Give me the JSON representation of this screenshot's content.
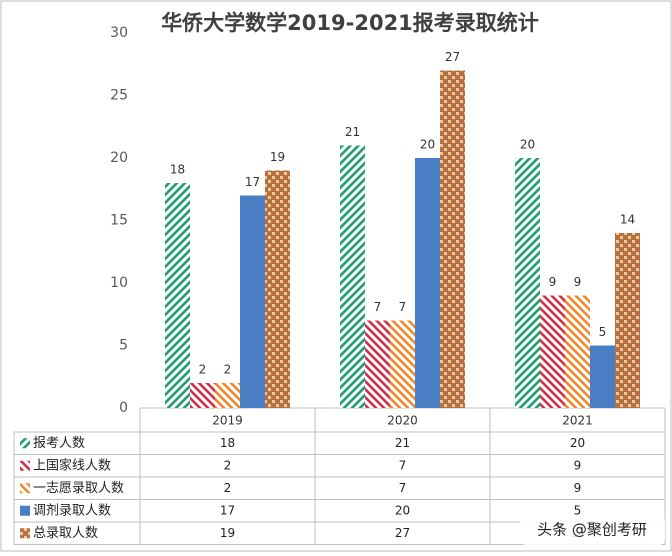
{
  "chart_data": {
    "type": "bar",
    "title": "华侨大学数学2019-2021报考录取统计",
    "categories": [
      "2019",
      "2020",
      "2021"
    ],
    "series": [
      {
        "name": "报考人数",
        "color": "#1e9e6e",
        "values": [
          18,
          21,
          20
        ]
      },
      {
        "name": "上国家线人数",
        "color": "#d0304a",
        "values": [
          2,
          7,
          9
        ]
      },
      {
        "name": "一志愿录取人数",
        "color": "#ef8a2c",
        "values": [
          2,
          7,
          9
        ]
      },
      {
        "name": "调剂录取人数",
        "color": "#4a7ec4",
        "values": [
          17,
          20,
          5
        ]
      },
      {
        "name": "总录取人数",
        "color": "#b8703c",
        "values": [
          19,
          27,
          14
        ]
      }
    ],
    "ylim": [
      0,
      30
    ],
    "yticks": [
      0,
      5,
      10,
      15,
      20,
      25,
      30
    ],
    "data_table": true,
    "watermark": "头条 @聚创考研"
  }
}
